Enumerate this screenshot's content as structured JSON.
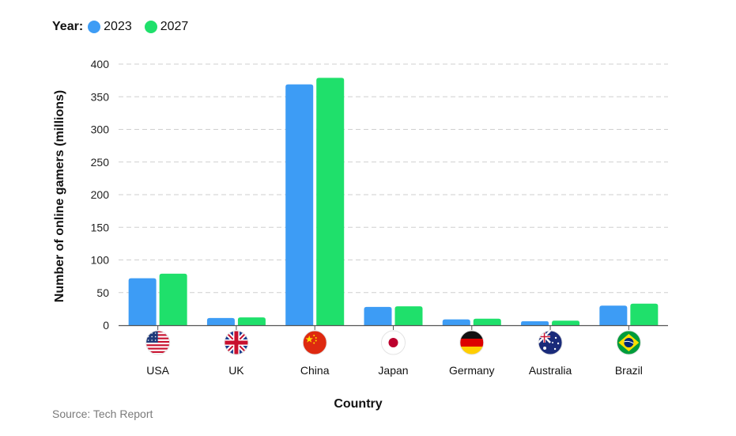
{
  "legend": {
    "title": "Year:",
    "items": [
      {
        "label": "2023",
        "color": "#3d9cf5"
      },
      {
        "label": "2027",
        "color": "#1fe06b"
      }
    ]
  },
  "source": "Source: Tech Report",
  "chart_data": {
    "type": "bar",
    "title": "",
    "xlabel": "Country",
    "ylabel": "Number of online gamers (millions)",
    "ylim": [
      0,
      400
    ],
    "yticks": [
      0,
      50,
      100,
      150,
      200,
      250,
      300,
      350,
      400
    ],
    "grid": true,
    "legend_position": "top-left",
    "categories": [
      "USA",
      "UK",
      "China",
      "Japan",
      "Germany",
      "Australia",
      "Brazil"
    ],
    "flag_icons": [
      "usa-flag-icon",
      "uk-flag-icon",
      "china-flag-icon",
      "japan-flag-icon",
      "germany-flag-icon",
      "australia-flag-icon",
      "brazil-flag-icon"
    ],
    "series": [
      {
        "name": "2023",
        "color": "#3d9cf5",
        "values": [
          72,
          11,
          369,
          28,
          9,
          6,
          30
        ]
      },
      {
        "name": "2027",
        "color": "#1fe06b",
        "values": [
          79,
          12,
          379,
          29,
          10,
          7,
          33
        ]
      }
    ]
  }
}
